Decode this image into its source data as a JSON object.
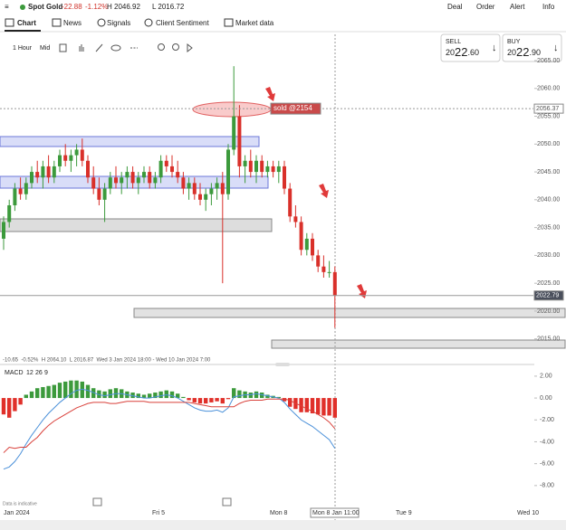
{
  "header": {
    "instrument": "Spot Gold",
    "change": "-22.88",
    "change_pct": "-1.12%",
    "high": "H 2046.92",
    "low": "L 2016.72",
    "menu": [
      "Deal",
      "Order",
      "Alert",
      "Info"
    ]
  },
  "tabs": [
    "Chart",
    "News",
    "Signals",
    "Client Sentiment",
    "Market data"
  ],
  "toolbar": {
    "interval": "1 Hour",
    "price_type": "Mid"
  },
  "sell": {
    "label": "SELL",
    "price": [
      "20",
      "22",
      ".60"
    ]
  },
  "buy": {
    "label": "BUY",
    "price": [
      "20",
      "22",
      ".90"
    ]
  },
  "note": "Data is indicative",
  "timeline": [
    "Jan 2024",
    "Fri 5",
    "Mon 8",
    "Mon 8 Jan 11:00",
    "Tue 9",
    "Wed 10"
  ],
  "chart_data": [
    {
      "type": "candlestick",
      "up_color": "#3c9a3c",
      "down_color": "#d9302a",
      "open": [
        2033,
        2036,
        2039,
        2042,
        2041,
        2043,
        2045,
        2044,
        2046,
        2044,
        2046,
        2048,
        2047,
        2048,
        2049,
        2047,
        2044,
        2042,
        2040,
        2042,
        2044,
        2043,
        2044,
        2045,
        2043,
        2044,
        2045,
        2043,
        2044,
        2047,
        2046,
        2045,
        2044,
        2042,
        2043,
        2041,
        2040,
        2041,
        2042,
        2043,
        2041,
        2049,
        2055,
        2046,
        2047,
        2045,
        2047,
        2045,
        2046,
        2045,
        2046,
        2042,
        2037,
        2036,
        2031,
        2033,
        2030,
        2028,
        2027,
        2027
      ],
      "high": [
        2037,
        2040,
        2043,
        2044,
        2044,
        2046,
        2047,
        2047,
        2048,
        2047,
        2049,
        2050,
        2049,
        2050,
        2051,
        2048,
        2046,
        2044,
        2043,
        2045,
        2046,
        2045,
        2046,
        2046,
        2045,
        2046,
        2046,
        2045,
        2048,
        2048,
        2048,
        2047,
        2045,
        2044,
        2044,
        2043,
        2042,
        2043,
        2044,
        2045,
        2050,
        2064,
        2057,
        2048,
        2049,
        2048,
        2048,
        2047,
        2047,
        2047,
        2047,
        2043,
        2039,
        2037,
        2034,
        2034,
        2031,
        2030,
        2029,
        2028
      ],
      "low": [
        2031,
        2035,
        2038,
        2040,
        2040,
        2042,
        2043,
        2042,
        2043,
        2043,
        2045,
        2046,
        2045,
        2046,
        2046,
        2043,
        2041,
        2039,
        2036,
        2041,
        2042,
        2041,
        2042,
        2042,
        2041,
        2043,
        2042,
        2042,
        2043,
        2045,
        2044,
        2043,
        2041,
        2040,
        2040,
        2039,
        2038,
        2039,
        2040,
        2025,
        2040,
        2048,
        2044,
        2043,
        2044,
        2043,
        2044,
        2044,
        2044,
        2043,
        2041,
        2036,
        2035,
        2030,
        2030,
        2029,
        2027,
        2026,
        2026,
        2017
      ],
      "close": [
        2036,
        2039,
        2042,
        2041,
        2043,
        2045,
        2044,
        2046,
        2044,
        2046,
        2048,
        2047,
        2048,
        2049,
        2047,
        2044,
        2042,
        2040,
        2042,
        2044,
        2043,
        2044,
        2045,
        2043,
        2044,
        2045,
        2043,
        2044,
        2047,
        2046,
        2045,
        2044,
        2042,
        2043,
        2041,
        2040,
        2041,
        2042,
        2043,
        2041,
        2049,
        2055,
        2046,
        2047,
        2045,
        2047,
        2045,
        2046,
        2045,
        2046,
        2042,
        2037,
        2036,
        2031,
        2033,
        2030,
        2028,
        2027,
        2027,
        2022.8
      ],
      "ylim": [
        2011.7,
        2070.2
      ],
      "yticks": [
        {
          "value": 2065,
          "label": "2065.00"
        },
        {
          "value": 2060,
          "label": "2060.00"
        },
        {
          "value": 2055,
          "label": "2055.00"
        },
        {
          "value": 2050,
          "label": "2050.00"
        },
        {
          "value": 2045,
          "label": "2045.00"
        },
        {
          "value": 2040,
          "label": "2040.00"
        },
        {
          "value": 2035,
          "label": "2035.00"
        },
        {
          "value": 2030,
          "label": "2030.00"
        },
        {
          "value": 2025,
          "label": "2025.00"
        },
        {
          "value": 2020,
          "label": "2020.00"
        },
        {
          "value": 2015,
          "label": "2015.00"
        }
      ],
      "price_labels": [
        {
          "value": 2056.37,
          "label": "2056.37"
        },
        {
          "value": 2022.79,
          "label": "2022.79"
        }
      ],
      "annotation": "sold @2154",
      "info": "-10.65  -0.52%  H 2064.10  L 2016.87  Wed 3 Jan 2024 18:00 - Wed 10 Jan 2024 7:00"
    },
    {
      "type": "macd",
      "title": "MACD",
      "params": [
        "12",
        "26",
        "9"
      ],
      "up_color": "#3c9a3c",
      "down_color": "#e0302a",
      "macd_color": "#4a90d9",
      "signal_color": "#d9403a",
      "histogram": [
        -1.5,
        -1.8,
        -1.2,
        -0.6,
        0.3,
        0.6,
        0.9,
        1.0,
        1.1,
        1.2,
        1.4,
        1.5,
        1.6,
        1.6,
        1.5,
        1.2,
        0.9,
        0.7,
        0.6,
        0.8,
        0.9,
        0.8,
        0.6,
        0.5,
        0.4,
        0.3,
        0.4,
        0.5,
        0.6,
        0.7,
        0.6,
        0.4,
        0.1,
        -0.2,
        -0.4,
        -0.5,
        -0.5,
        -0.4,
        -0.3,
        -0.5,
        -0.1,
        0.9,
        0.7,
        0.6,
        0.5,
        0.6,
        0.5,
        0.3,
        0.2,
        0.1,
        -0.3,
        -0.8,
        -1.0,
        -1.3,
        -1.3,
        -1.4,
        -1.5,
        -1.6,
        -1.6,
        -1.8
      ],
      "macd": [
        -6.5,
        -6.3,
        -5.8,
        -5.1,
        -4.2,
        -3.4,
        -2.7,
        -2.0,
        -1.4,
        -0.9,
        -0.4,
        0.0,
        0.4,
        0.7,
        0.8,
        0.7,
        0.5,
        0.3,
        0.2,
        0.3,
        0.4,
        0.4,
        0.3,
        0.2,
        0.1,
        0.0,
        0.0,
        0.1,
        0.2,
        0.3,
        0.2,
        0.0,
        -0.3,
        -0.6,
        -0.9,
        -1.1,
        -1.2,
        -1.2,
        -1.1,
        -1.3,
        -0.9,
        0.1,
        0.2,
        0.3,
        0.3,
        0.4,
        0.3,
        0.2,
        0.1,
        0.0,
        -0.4,
        -1.0,
        -1.5,
        -2.0,
        -2.3,
        -2.6,
        -3.0,
        -3.4,
        -3.8,
        -4.6
      ],
      "signal": [
        -5.0,
        -4.5,
        -4.6,
        -4.5,
        -4.5,
        -4.0,
        -3.6,
        -3.0,
        -2.5,
        -2.1,
        -1.8,
        -1.5,
        -1.2,
        -0.9,
        -0.7,
        -0.5,
        -0.4,
        -0.4,
        -0.4,
        -0.5,
        -0.5,
        -0.4,
        -0.3,
        -0.3,
        -0.3,
        -0.3,
        -0.4,
        -0.4,
        -0.4,
        -0.4,
        -0.4,
        -0.4,
        -0.4,
        -0.4,
        -0.5,
        -0.6,
        -0.7,
        -0.8,
        -0.8,
        -0.8,
        -0.8,
        -0.8,
        -0.5,
        -0.3,
        -0.2,
        -0.2,
        -0.2,
        -0.1,
        -0.1,
        -0.1,
        -0.1,
        -0.2,
        -0.5,
        -0.7,
        -1.0,
        -1.2,
        -1.5,
        -1.8,
        -2.2,
        -2.8
      ],
      "ylim": [
        -9.5,
        2.9
      ],
      "yticks": [
        {
          "value": 2,
          "label": "2.00"
        },
        {
          "value": 0,
          "label": "0.00"
        },
        {
          "value": -2,
          "label": "-2.00"
        },
        {
          "value": -4,
          "label": "-4.00"
        },
        {
          "value": -6,
          "label": "-6.00"
        },
        {
          "value": -8,
          "label": "-8.00"
        }
      ]
    }
  ]
}
